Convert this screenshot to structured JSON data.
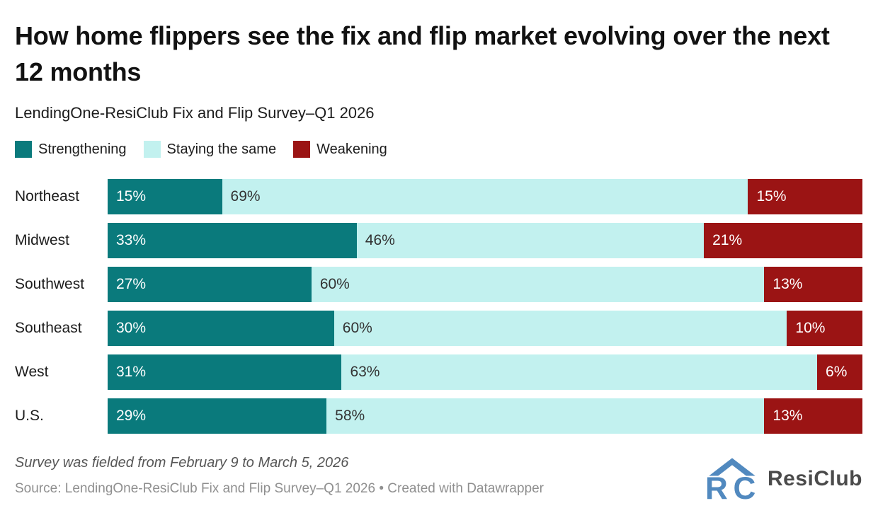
{
  "header": {
    "title": "How home flippers see the fix and flip market evolving over the next 12 months",
    "subtitle": "LendingOne-ResiClub Fix and Flip Survey–Q1 2026"
  },
  "legend": [
    {
      "label": "Strengthening",
      "color": "#0a7a7c"
    },
    {
      "label": "Staying the same",
      "color": "#c2f1ef"
    },
    {
      "label": "Weakening",
      "color": "#9b1414"
    }
  ],
  "chart_data": {
    "type": "bar",
    "subtype": "horizontal-stacked-100",
    "title": "How home flippers see the fix and flip market evolving over the next 12 months",
    "subtitle": "LendingOne-ResiClub Fix and Flip Survey–Q1 2026",
    "categories": [
      "Northeast",
      "Midwest",
      "Southwest",
      "Southeast",
      "West",
      "U.S."
    ],
    "series": [
      {
        "name": "Strengthening",
        "color": "#0a7a7c",
        "text_color": "#ffffff",
        "values": [
          15,
          33,
          27,
          30,
          31,
          29
        ]
      },
      {
        "name": "Staying the same",
        "color": "#c2f1ef",
        "text_color": "#333333",
        "values": [
          69,
          46,
          60,
          60,
          63,
          58
        ]
      },
      {
        "name": "Weakening",
        "color": "#9b1414",
        "text_color": "#ffffff",
        "values": [
          15,
          21,
          13,
          10,
          6,
          13
        ]
      }
    ],
    "value_suffix": "%",
    "xlim": [
      0,
      100
    ],
    "grid": false,
    "legend_position": "top",
    "value_labels": "inside-left"
  },
  "footer": {
    "note": "Survey was fielded from February 9 to March 5, 2026",
    "source": "Source: LendingOne-ResiClub Fix and Flip Survey–Q1 2026 • Created with Datawrapper",
    "logo_text": "ResiClub",
    "logo_color": "#5189bf"
  }
}
